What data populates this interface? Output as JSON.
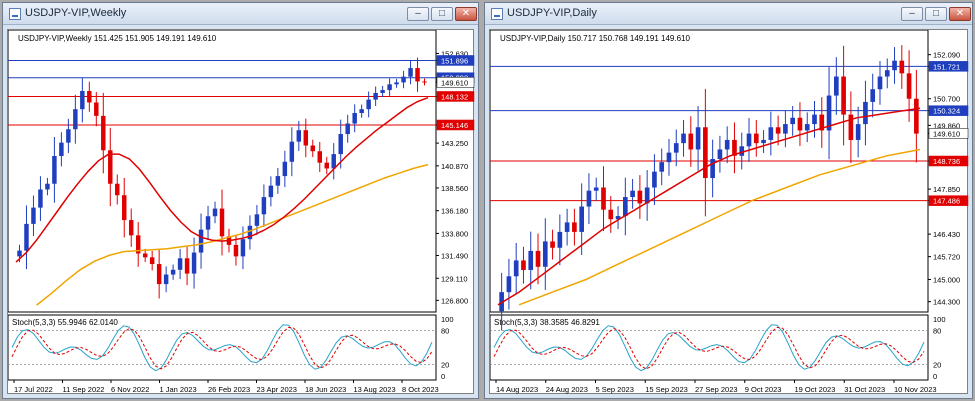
{
  "weekly": {
    "title": "USDJPY-VIP,Weekly",
    "header": "USDJPY-VIP,Weekly  151.425 151.905 149.191 149.610",
    "stoch_label": "Stoch(5,3,3) 55.9946 62.0140",
    "price_ticks": [
      "152.630",
      "151.896",
      "150.093",
      "149.610",
      "148.132",
      "145.146",
      "143.250",
      "140.870",
      "138.560",
      "136.180",
      "133.800",
      "131.490",
      "129.110",
      "126.800"
    ],
    "price_flags": [
      {
        "label": "151.896",
        "color": "#1f3fbf"
      },
      {
        "label": "150.093",
        "color": "#1f3fbf"
      },
      {
        "label": "149.610",
        "color": "#ffffff"
      },
      {
        "label": "148.132",
        "color": "#e00000"
      },
      {
        "label": "145.146",
        "color": "#e00000"
      }
    ],
    "stoch_ticks": [
      "100",
      "80",
      "20",
      "0"
    ],
    "date_ticks": [
      "17 Jul 2022",
      "11 Sep 2022",
      "6 Nov 2022",
      "1 Jan 2023",
      "26 Feb 2023",
      "23 Apr 2023",
      "18 Jun 2023",
      "13 Aug 2023",
      "8 Oct 2023"
    ]
  },
  "daily": {
    "title": "USDJPY-VIP,Daily",
    "header": "USDJPY-VIP,Daily  150.717 150.768 149.191 149.610",
    "stoch_label": "Stoch(5,3,3) 38.3585 46.8291",
    "price_ticks": [
      "152.090",
      "151.721",
      "150.324",
      "149.610",
      "148.736",
      "147.486",
      "146.430",
      "145.720",
      "145.000",
      "144.300",
      "150.700",
      "149.860",
      "147.850"
    ],
    "price_flags": [
      {
        "label": "151.721",
        "color": "#1f3fbf"
      },
      {
        "label": "150.324",
        "color": "#1f3fbf"
      },
      {
        "label": "149.610",
        "color": "#ffffff"
      },
      {
        "label": "148.736",
        "color": "#e00000"
      },
      {
        "label": "147.486",
        "color": "#e00000"
      }
    ],
    "stoch_ticks": [
      "100",
      "80",
      "20",
      "0"
    ],
    "date_ticks": [
      "14 Aug 2023",
      "24 Aug 2023",
      "5 Sep 2023",
      "15 Sep 2023",
      "27 Sep 2023",
      "9 Oct 2023",
      "19 Oct 2023",
      "31 Oct 2023",
      "10 Nov 2023"
    ]
  },
  "colors": {
    "bull": "#1f3fbf",
    "bear": "#e00000",
    "ma_fast": "#e00000",
    "ma_slow": "#f0a500",
    "stoch_main": "#29a3c9",
    "stoch_signal": "#e00000",
    "support_line": "#e00000",
    "resistance_line": "#1f3fbf"
  },
  "chart_data": [
    {
      "type": "candlestick",
      "title": "USDJPY-VIP,Weekly",
      "ylim": [
        126.0,
        153.2
      ],
      "x_labels": [
        "17 Jul 2022",
        "11 Sep 2022",
        "6 Nov 2022",
        "1 Jan 2023",
        "26 Feb 2023",
        "23 Apr 2023",
        "18 Jun 2023",
        "13 Aug 2023",
        "8 Oct 2023"
      ],
      "horizontal_lines": [
        151.896,
        150.093,
        148.132,
        145.146
      ],
      "close_path": [
        132.0,
        134.8,
        136.5,
        138.4,
        139.0,
        141.9,
        143.3,
        144.7,
        146.8,
        148.7,
        147.5,
        146.1,
        142.5,
        139.0,
        137.8,
        135.2,
        133.6,
        131.7,
        131.3,
        130.6,
        128.5,
        129.5,
        130.0,
        131.2,
        129.6,
        131.8,
        134.2,
        135.6,
        136.4,
        133.5,
        132.6,
        131.4,
        133.2,
        134.6,
        135.8,
        137.6,
        138.8,
        139.8,
        141.3,
        143.4,
        144.6,
        143.0,
        142.4,
        141.2,
        140.6,
        142.1,
        144.2,
        145.3,
        146.4,
        146.8,
        147.8,
        148.5,
        148.8,
        149.4,
        149.6,
        150.2,
        151.1,
        149.7,
        149.6
      ],
      "ma_fast": [
        130.8,
        131.8,
        133.1,
        134.6,
        136.1,
        137.6,
        139.0,
        140.3,
        141.4,
        142.1,
        142.1,
        141.6,
        140.5,
        139.1,
        137.6,
        136.2,
        135.0,
        134.0,
        133.4,
        133.1,
        133.0,
        133.1,
        133.3,
        133.6,
        134.1,
        134.7,
        135.5,
        136.4,
        137.4,
        138.5,
        139.6,
        140.7,
        141.8,
        142.8,
        143.7,
        144.6,
        145.4,
        146.2,
        147.0,
        147.6,
        148.0
      ],
      "ma_slow": [
        126.3,
        127.5,
        128.8,
        130.0,
        130.9,
        131.5,
        131.9,
        132.0,
        132.1,
        132.2,
        132.4,
        132.6,
        132.9,
        133.3,
        133.7,
        134.2,
        134.8,
        135.4,
        136.0,
        136.6,
        137.2,
        137.8,
        138.4,
        139.0,
        139.6,
        140.1,
        140.6,
        141.0
      ],
      "stoch_range": [
        0,
        100
      ],
      "stoch_levels": [
        80,
        20
      ],
      "stoch_last": {
        "main": 55.9946,
        "signal": 62.014
      }
    },
    {
      "type": "candlestick",
      "title": "USDJPY-VIP,Daily",
      "ylim": [
        144.1,
        152.3
      ],
      "x_labels": [
        "14 Aug 2023",
        "24 Aug 2023",
        "5 Sep 2023",
        "15 Sep 2023",
        "27 Sep 2023",
        "9 Oct 2023",
        "19 Oct 2023",
        "31 Oct 2023",
        "10 Nov 2023"
      ],
      "horizontal_lines": [
        151.721,
        150.324,
        148.736,
        147.486
      ],
      "close_path": [
        144.6,
        145.1,
        145.6,
        145.3,
        145.9,
        145.4,
        146.2,
        146.0,
        146.5,
        146.8,
        146.5,
        147.3,
        147.8,
        147.9,
        147.2,
        146.9,
        147.0,
        147.6,
        147.8,
        147.4,
        147.9,
        148.4,
        148.7,
        149.0,
        149.3,
        149.6,
        149.1,
        149.8,
        148.2,
        148.8,
        149.1,
        149.4,
        148.9,
        149.2,
        149.6,
        149.3,
        149.4,
        149.8,
        149.6,
        149.9,
        150.1,
        149.7,
        149.9,
        150.2,
        149.7,
        150.8,
        151.4,
        150.2,
        149.4,
        149.9,
        150.6,
        151.0,
        151.4,
        151.6,
        151.9,
        151.5,
        150.7,
        149.6
      ],
      "ma_fast": [
        144.2,
        144.6,
        145.1,
        145.6,
        146.1,
        146.6,
        147.0,
        147.4,
        147.8,
        148.2,
        148.6,
        148.9,
        149.1,
        149.3,
        149.5,
        149.7,
        149.9,
        150.1,
        150.2,
        150.3,
        150.4
      ],
      "ma_slow": [
        144.2,
        144.6,
        145.0,
        145.5,
        146.0,
        146.5,
        147.0,
        147.5,
        147.9,
        148.3,
        148.6,
        148.9,
        149.1
      ],
      "stoch_range": [
        0,
        100
      ],
      "stoch_levels": [
        80,
        20
      ],
      "stoch_last": {
        "main": 38.3585,
        "signal": 46.8291
      }
    }
  ]
}
